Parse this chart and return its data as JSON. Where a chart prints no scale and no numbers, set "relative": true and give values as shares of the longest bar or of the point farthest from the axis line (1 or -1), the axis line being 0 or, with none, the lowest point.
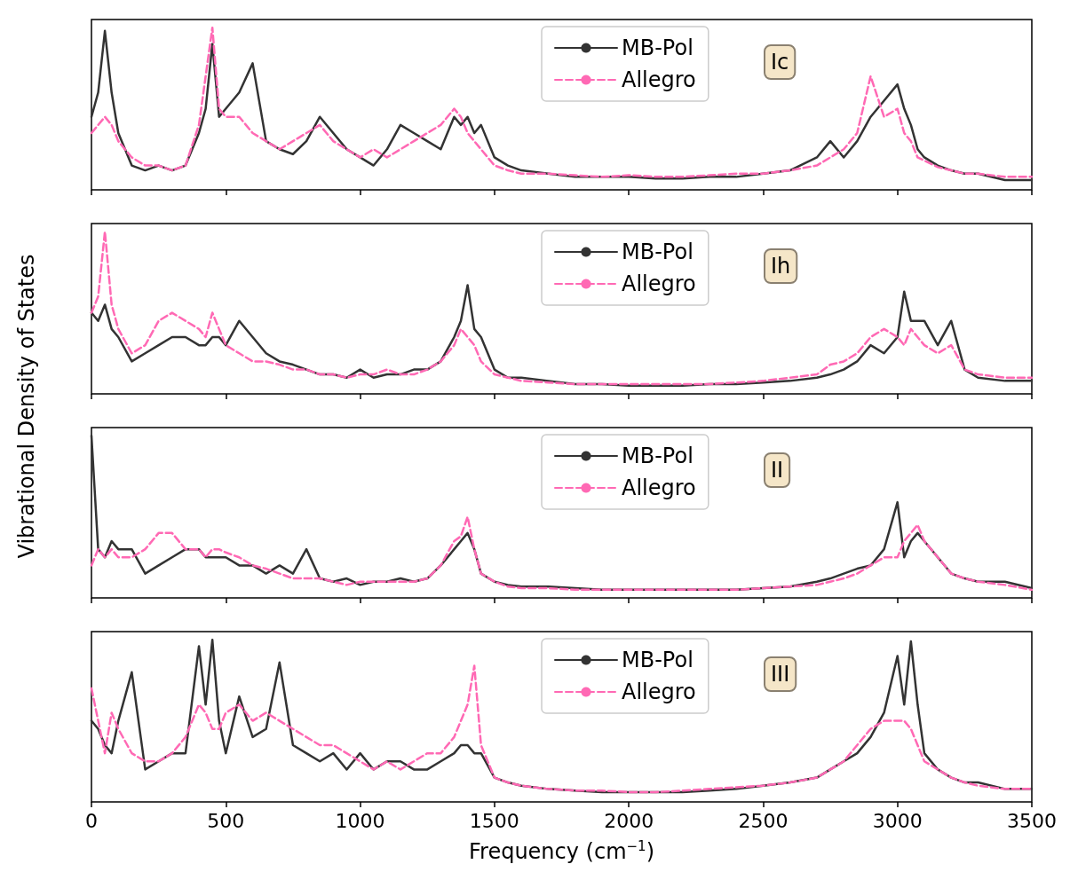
{
  "chart_data": [
    {
      "type": "line",
      "relative": true,
      "ylabel": "Vibrational Density of States",
      "annotations": [
        "Ic"
      ],
      "legend": "top",
      "marker": "none",
      "tick_labels": false,
      "xlim": [
        0,
        3500
      ],
      "xticks": [
        0,
        500,
        1000,
        1500,
        2000,
        2500,
        3000,
        3500
      ],
      "x": [
        0,
        25,
        50,
        75,
        100,
        150,
        200,
        250,
        300,
        350,
        400,
        425,
        450,
        475,
        500,
        550,
        600,
        650,
        700,
        750,
        800,
        850,
        900,
        950,
        1000,
        1050,
        1100,
        1150,
        1200,
        1250,
        1300,
        1350,
        1375,
        1400,
        1425,
        1450,
        1500,
        1550,
        1600,
        1700,
        1800,
        1900,
        2000,
        2100,
        2200,
        2300,
        2400,
        2500,
        2600,
        2700,
        2750,
        2800,
        2850,
        2900,
        2950,
        3000,
        3025,
        3050,
        3075,
        3100,
        3150,
        3200,
        3250,
        3300,
        3400,
        3500
      ],
      "series": [
        {
          "name": "MB-Pol",
          "color": "#333333",
          "line_style": "solid",
          "values": [
            0.45,
            0.6,
            0.98,
            0.6,
            0.35,
            0.15,
            0.12,
            0.15,
            0.12,
            0.15,
            0.35,
            0.5,
            0.9,
            0.45,
            0.5,
            0.6,
            0.78,
            0.3,
            0.25,
            0.22,
            0.3,
            0.45,
            0.35,
            0.25,
            0.2,
            0.15,
            0.25,
            0.4,
            0.35,
            0.3,
            0.25,
            0.45,
            0.4,
            0.45,
            0.35,
            0.4,
            0.2,
            0.15,
            0.12,
            0.1,
            0.08,
            0.08,
            0.08,
            0.07,
            0.07,
            0.08,
            0.08,
            0.1,
            0.12,
            0.2,
            0.3,
            0.2,
            0.3,
            0.45,
            0.55,
            0.65,
            0.5,
            0.4,
            0.25,
            0.2,
            0.15,
            0.12,
            0.1,
            0.1,
            0.06,
            0.06
          ]
        },
        {
          "name": "Allegro",
          "color": "#ff69b4",
          "line_style": "dashed",
          "values": [
            0.35,
            0.4,
            0.45,
            0.4,
            0.3,
            0.2,
            0.15,
            0.15,
            0.12,
            0.15,
            0.4,
            0.7,
            1,
            0.5,
            0.45,
            0.45,
            0.35,
            0.3,
            0.25,
            0.3,
            0.35,
            0.4,
            0.3,
            0.25,
            0.2,
            0.25,
            0.2,
            0.25,
            0.3,
            0.35,
            0.4,
            0.5,
            0.45,
            0.35,
            0.3,
            0.25,
            0.15,
            0.12,
            0.1,
            0.1,
            0.09,
            0.08,
            0.09,
            0.08,
            0.08,
            0.09,
            0.1,
            0.1,
            0.12,
            0.15,
            0.2,
            0.25,
            0.35,
            0.7,
            0.45,
            0.5,
            0.35,
            0.3,
            0.2,
            0.18,
            0.14,
            0.12,
            0.1,
            0.1,
            0.08,
            0.08
          ]
        }
      ]
    },
    {
      "type": "line",
      "relative": true,
      "annotations": [
        "Ih"
      ],
      "legend": "top",
      "marker": "none",
      "tick_labels": false,
      "xlim": [
        0,
        3500
      ],
      "xticks": [
        0,
        500,
        1000,
        1500,
        2000,
        2500,
        3000,
        3500
      ],
      "x": [
        0,
        25,
        50,
        75,
        100,
        150,
        200,
        250,
        300,
        350,
        400,
        425,
        450,
        475,
        500,
        550,
        600,
        650,
        700,
        750,
        800,
        850,
        900,
        950,
        1000,
        1050,
        1100,
        1150,
        1200,
        1250,
        1300,
        1350,
        1375,
        1400,
        1425,
        1450,
        1500,
        1550,
        1600,
        1700,
        1800,
        1900,
        2000,
        2100,
        2200,
        2300,
        2400,
        2500,
        2600,
        2700,
        2750,
        2800,
        2850,
        2900,
        2950,
        3000,
        3025,
        3050,
        3075,
        3100,
        3150,
        3200,
        3250,
        3300,
        3400,
        3500
      ],
      "series": [
        {
          "name": "MB-Pol",
          "color": "#333333",
          "line_style": "solid",
          "values": [
            0.5,
            0.45,
            0.55,
            0.4,
            0.35,
            0.2,
            0.25,
            0.3,
            0.35,
            0.35,
            0.3,
            0.3,
            0.35,
            0.35,
            0.3,
            0.45,
            0.35,
            0.25,
            0.2,
            0.18,
            0.15,
            0.12,
            0.12,
            0.1,
            0.15,
            0.1,
            0.12,
            0.12,
            0.15,
            0.15,
            0.2,
            0.35,
            0.45,
            0.67,
            0.4,
            0.35,
            0.15,
            0.1,
            0.1,
            0.08,
            0.06,
            0.06,
            0.05,
            0.05,
            0.05,
            0.06,
            0.06,
            0.07,
            0.08,
            0.1,
            0.12,
            0.15,
            0.2,
            0.3,
            0.25,
            0.35,
            0.63,
            0.45,
            0.45,
            0.45,
            0.3,
            0.45,
            0.15,
            0.1,
            0.08,
            0.08
          ]
        },
        {
          "name": "Allegro",
          "color": "#ff69b4",
          "line_style": "dashed",
          "values": [
            0.5,
            0.6,
            1,
            0.55,
            0.4,
            0.25,
            0.3,
            0.45,
            0.5,
            0.45,
            0.4,
            0.35,
            0.5,
            0.4,
            0.3,
            0.25,
            0.2,
            0.2,
            0.18,
            0.15,
            0.15,
            0.12,
            0.12,
            0.1,
            0.12,
            0.12,
            0.15,
            0.12,
            0.12,
            0.15,
            0.2,
            0.3,
            0.4,
            0.35,
            0.3,
            0.2,
            0.12,
            0.1,
            0.08,
            0.07,
            0.06,
            0.06,
            0.06,
            0.06,
            0.06,
            0.06,
            0.07,
            0.08,
            0.1,
            0.12,
            0.18,
            0.2,
            0.25,
            0.35,
            0.4,
            0.35,
            0.3,
            0.4,
            0.35,
            0.3,
            0.25,
            0.3,
            0.15,
            0.12,
            0.1,
            0.1
          ]
        }
      ]
    },
    {
      "type": "line",
      "relative": true,
      "annotations": [
        "II"
      ],
      "legend": "top",
      "marker": "none",
      "tick_labels": false,
      "xlim": [
        0,
        3500
      ],
      "xticks": [
        0,
        500,
        1000,
        1500,
        2000,
        2500,
        3000,
        3500
      ],
      "x": [
        0,
        25,
        50,
        75,
        100,
        150,
        200,
        250,
        300,
        350,
        400,
        425,
        450,
        475,
        500,
        550,
        600,
        650,
        700,
        750,
        800,
        850,
        900,
        950,
        1000,
        1050,
        1100,
        1150,
        1200,
        1250,
        1300,
        1350,
        1375,
        1400,
        1425,
        1450,
        1500,
        1550,
        1600,
        1700,
        1800,
        1900,
        2000,
        2100,
        2200,
        2300,
        2400,
        2500,
        2600,
        2700,
        2750,
        2800,
        2850,
        2900,
        2950,
        3000,
        3025,
        3050,
        3075,
        3100,
        3150,
        3200,
        3250,
        3300,
        3400,
        3500
      ],
      "series": [
        {
          "name": "MB-Pol",
          "color": "#333333",
          "line_style": "solid",
          "values": [
            1,
            0.3,
            0.25,
            0.35,
            0.3,
            0.3,
            0.15,
            0.2,
            0.25,
            0.3,
            0.3,
            0.25,
            0.25,
            0.25,
            0.25,
            0.2,
            0.2,
            0.15,
            0.2,
            0.15,
            0.3,
            0.12,
            0.1,
            0.12,
            0.08,
            0.1,
            0.1,
            0.12,
            0.1,
            0.12,
            0.2,
            0.3,
            0.35,
            0.4,
            0.3,
            0.15,
            0.1,
            0.08,
            0.07,
            0.07,
            0.06,
            0.05,
            0.05,
            0.05,
            0.05,
            0.05,
            0.05,
            0.06,
            0.07,
            0.1,
            0.12,
            0.15,
            0.18,
            0.2,
            0.3,
            0.59,
            0.25,
            0.35,
            0.4,
            0.35,
            0.25,
            0.15,
            0.12,
            0.1,
            0.1,
            0.06
          ]
        },
        {
          "name": "Allegro",
          "color": "#ff69b4",
          "line_style": "dashed",
          "values": [
            0.2,
            0.3,
            0.25,
            0.3,
            0.25,
            0.25,
            0.3,
            0.4,
            0.4,
            0.3,
            0.3,
            0.25,
            0.3,
            0.3,
            0.28,
            0.25,
            0.2,
            0.18,
            0.15,
            0.12,
            0.12,
            0.12,
            0.1,
            0.08,
            0.1,
            0.1,
            0.1,
            0.1,
            0.1,
            0.12,
            0.2,
            0.35,
            0.38,
            0.5,
            0.3,
            0.15,
            0.1,
            0.07,
            0.06,
            0.06,
            0.05,
            0.05,
            0.05,
            0.05,
            0.05,
            0.05,
            0.05,
            0.06,
            0.07,
            0.08,
            0.1,
            0.12,
            0.15,
            0.2,
            0.25,
            0.25,
            0.35,
            0.4,
            0.45,
            0.35,
            0.25,
            0.15,
            0.12,
            0.1,
            0.08,
            0.05
          ]
        }
      ]
    },
    {
      "type": "line",
      "relative": true,
      "xlabel": "Frequency (cm$^{−1}$)",
      "annotations": [
        "III"
      ],
      "legend": "top",
      "marker": "none",
      "tick_labels": "x",
      "xlim": [
        0,
        3500
      ],
      "xticks": [
        0,
        500,
        1000,
        1500,
        2000,
        2500,
        3000,
        3500
      ],
      "x": [
        0,
        25,
        50,
        75,
        100,
        150,
        200,
        250,
        300,
        350,
        400,
        425,
        450,
        475,
        500,
        550,
        600,
        650,
        700,
        750,
        800,
        850,
        900,
        950,
        1000,
        1050,
        1100,
        1150,
        1200,
        1250,
        1300,
        1350,
        1375,
        1400,
        1425,
        1450,
        1500,
        1550,
        1600,
        1700,
        1800,
        1900,
        2000,
        2100,
        2200,
        2300,
        2400,
        2500,
        2600,
        2700,
        2750,
        2800,
        2850,
        2900,
        2950,
        3000,
        3025,
        3050,
        3075,
        3100,
        3150,
        3200,
        3250,
        3300,
        3400,
        3500
      ],
      "series": [
        {
          "name": "MB-Pol",
          "color": "#333333",
          "line_style": "solid",
          "values": [
            0.5,
            0.45,
            0.35,
            0.3,
            0.5,
            0.8,
            0.2,
            0.25,
            0.3,
            0.3,
            0.96,
            0.6,
            1,
            0.5,
            0.3,
            0.65,
            0.4,
            0.45,
            0.86,
            0.35,
            0.3,
            0.25,
            0.3,
            0.2,
            0.3,
            0.2,
            0.25,
            0.25,
            0.2,
            0.2,
            0.25,
            0.3,
            0.35,
            0.35,
            0.3,
            0.3,
            0.15,
            0.12,
            0.1,
            0.08,
            0.07,
            0.06,
            0.06,
            0.06,
            0.06,
            0.07,
            0.08,
            0.1,
            0.12,
            0.15,
            0.2,
            0.25,
            0.3,
            0.4,
            0.55,
            0.9,
            0.6,
            0.99,
            0.6,
            0.3,
            0.2,
            0.15,
            0.12,
            0.12,
            0.08,
            0.08
          ]
        },
        {
          "name": "Allegro",
          "color": "#ff69b4",
          "line_style": "dashed",
          "values": [
            0.7,
            0.5,
            0.3,
            0.55,
            0.45,
            0.3,
            0.25,
            0.25,
            0.3,
            0.4,
            0.6,
            0.55,
            0.45,
            0.45,
            0.55,
            0.6,
            0.5,
            0.55,
            0.5,
            0.45,
            0.4,
            0.35,
            0.35,
            0.3,
            0.25,
            0.2,
            0.25,
            0.2,
            0.25,
            0.3,
            0.3,
            0.4,
            0.5,
            0.6,
            0.84,
            0.35,
            0.15,
            0.12,
            0.1,
            0.08,
            0.07,
            0.07,
            0.06,
            0.06,
            0.07,
            0.08,
            0.09,
            0.1,
            0.12,
            0.15,
            0.2,
            0.25,
            0.35,
            0.45,
            0.5,
            0.5,
            0.5,
            0.45,
            0.35,
            0.25,
            0.2,
            0.15,
            0.12,
            0.1,
            0.08,
            0.08
          ]
        }
      ]
    }
  ]
}
